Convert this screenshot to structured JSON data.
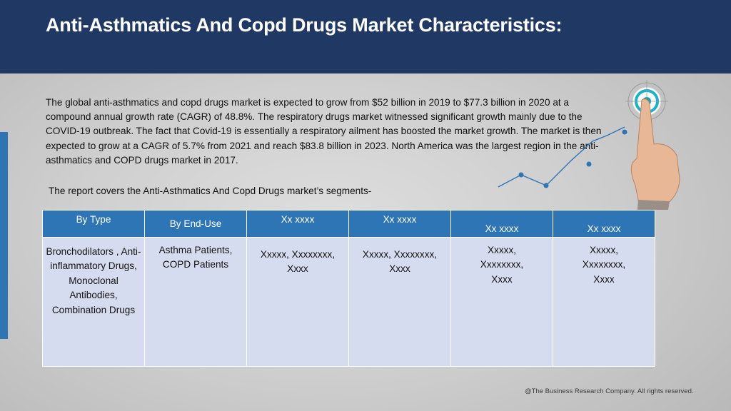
{
  "slide": {
    "title": "Anti-Asthmatics And Copd Drugs Market Characteristics:",
    "paragraph": "The global anti-asthmatics and copd drugs market is expected to grow from $52 billion in 2019 to $77.3 billion in 2020 at a compound annual growth rate (CAGR) of 48.8%. The respiratory drugs market witnessed significant growth mainly due to the COVID-19 outbreak. The fact that Covid-19 is essentially a respiratory ailment has boosted the market growth. The market is then expected to grow at a CAGR of 5.7% from 2021 and reach $83.8 billion in 2023.  North America was the largest region in the anti-asthmatics and COPD drugs market in 2017.",
    "segments_intro": "The report covers the Anti-Asthmatics And Copd Drugs market’s segments-",
    "footer": "@The Business Research Company. All rights reserved."
  },
  "table": {
    "headers": [
      "By Type",
      "By End-Use",
      "Xx xxxx",
      "Xx xxxx",
      "Xx xxxx",
      "Xx xxxx"
    ],
    "cells": [
      "Bronchodilators , Anti-inflammatory Drugs, Monoclonal Antibodies, Combination Drugs",
      "Asthma Patients, COPD Patients",
      "Xxxxx, Xxxxxxxx, Xxxx",
      "Xxxxx, Xxxxxxxx, Xxxx",
      "Xxxxx, Xxxxxxxx, Xxxx",
      "Xxxxx, Xxxxxxxx, Xxxx"
    ]
  },
  "decoration": {
    "icon": "hand-touch-target-icon",
    "accent_color": "#2e75b6",
    "header_color": "#1f3864"
  }
}
